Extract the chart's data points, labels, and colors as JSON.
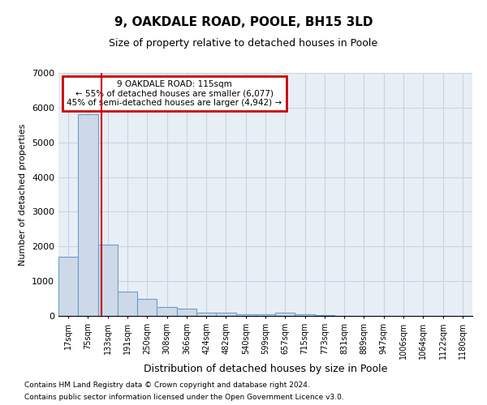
{
  "title": "9, OAKDALE ROAD, POOLE, BH15 3LD",
  "subtitle": "Size of property relative to detached houses in Poole",
  "xlabel": "Distribution of detached houses by size in Poole",
  "ylabel": "Number of detached properties",
  "bin_labels": [
    "17sqm",
    "75sqm",
    "133sqm",
    "191sqm",
    "250sqm",
    "308sqm",
    "366sqm",
    "424sqm",
    "482sqm",
    "540sqm",
    "599sqm",
    "657sqm",
    "715sqm",
    "773sqm",
    "831sqm",
    "889sqm",
    "947sqm",
    "1006sqm",
    "1064sqm",
    "1122sqm",
    "1180sqm"
  ],
  "bar_values": [
    1700,
    5800,
    2050,
    700,
    490,
    250,
    200,
    90,
    90,
    40,
    40,
    90,
    40,
    15,
    8,
    4,
    4,
    4,
    4,
    4,
    4
  ],
  "bar_color": "#cdd9e8",
  "bar_edge_color": "#6b9dc8",
  "grid_color": "#c8d4e0",
  "background_color": "#e8eef5",
  "vline_x": 1.69,
  "vline_color": "#cc0000",
  "ylim": [
    0,
    7000
  ],
  "yticks": [
    0,
    1000,
    2000,
    3000,
    4000,
    5000,
    6000,
    7000
  ],
  "annotation_text": "9 OAKDALE ROAD: 115sqm\n← 55% of detached houses are smaller (6,077)\n45% of semi-detached houses are larger (4,942) →",
  "annotation_box_color": "#cc0000",
  "footnote1": "Contains HM Land Registry data © Crown copyright and database right 2024.",
  "footnote2": "Contains public sector information licensed under the Open Government Licence v3.0."
}
